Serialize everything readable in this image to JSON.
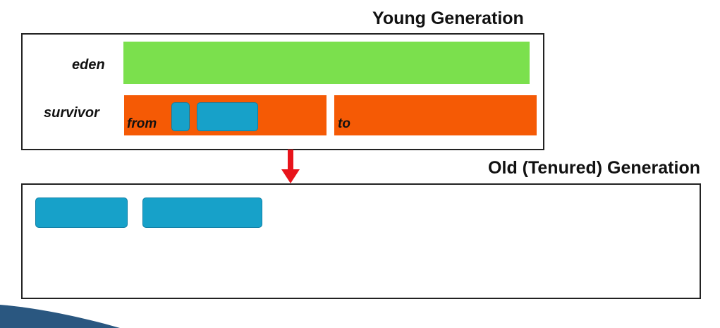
{
  "young": {
    "title": "Young Generation",
    "eden_label": "eden",
    "survivor_label": "survivor",
    "from_label": "from",
    "to_label": "to"
  },
  "old": {
    "title": "Old (Tenured) Generation"
  },
  "colors": {
    "eden": "#7be04d",
    "survivor": "#f55a05",
    "object": "#17a1c9",
    "arrow": "#e8141b",
    "border": "#222222",
    "swoosh": "#1f4e79"
  },
  "objects": {
    "from_count": 2,
    "old_count": 2
  },
  "icons": {
    "arrow": "down-arrow-icon",
    "swoosh": "decorative-swoosh-icon"
  }
}
